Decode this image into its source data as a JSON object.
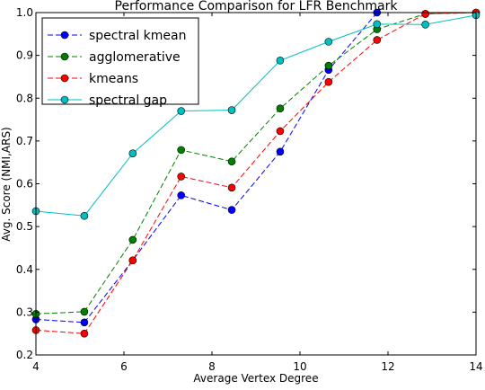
{
  "chart_data": {
    "type": "line",
    "title": "Performance Comparison for LFR Benchmark",
    "xlabel": "Average Vertex Degree",
    "ylabel": "Avg. Score (NMI,ARS)",
    "xlim": [
      4,
      14
    ],
    "ylim": [
      0.2,
      1.0
    ],
    "xticks": [
      "4",
      "6",
      "8",
      "10",
      "12",
      "14"
    ],
    "yticks": [
      "0.2",
      "0.3",
      "0.4",
      "0.5",
      "0.6",
      "0.7",
      "0.8",
      "0.9",
      "1.0"
    ],
    "grid": false,
    "legend_position": "top-left",
    "x": [
      4.0,
      5.1,
      6.2,
      7.3,
      8.45,
      9.55,
      10.65,
      11.75,
      12.85,
      14.0
    ],
    "series": [
      {
        "name": "spectral kmean",
        "color": "#0000ff",
        "linestyle": "dashed",
        "values": [
          0.283,
          0.276,
          0.421,
          0.573,
          0.539,
          0.675,
          0.866,
          1.0,
          null,
          null
        ]
      },
      {
        "name": "agglomerative",
        "color": "#007f00",
        "linestyle": "dashed",
        "values": [
          0.296,
          0.301,
          0.469,
          0.679,
          0.652,
          0.776,
          0.876,
          0.961,
          0.997,
          1.0
        ]
      },
      {
        "name": "kmeans",
        "color": "#ff0000",
        "linestyle": "dashed",
        "values": [
          0.258,
          0.25,
          0.421,
          0.617,
          0.591,
          0.723,
          0.838,
          0.936,
          0.997,
          1.0
        ]
      },
      {
        "name": "spectral gap",
        "color": "#00bfbf",
        "linestyle": "solid",
        "values": [
          0.536,
          0.525,
          0.671,
          0.77,
          0.772,
          0.888,
          0.932,
          0.973,
          0.972,
          0.994
        ]
      }
    ]
  }
}
